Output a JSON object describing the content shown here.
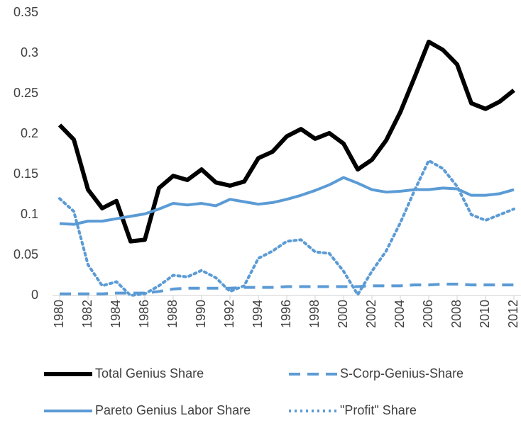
{
  "chart_data": {
    "type": "line",
    "x": [
      1980,
      1981,
      1982,
      1983,
      1984,
      1985,
      1986,
      1987,
      1988,
      1989,
      1990,
      1991,
      1992,
      1993,
      1994,
      1995,
      1996,
      1997,
      1998,
      1999,
      2000,
      2001,
      2002,
      2003,
      2004,
      2005,
      2006,
      2007,
      2008,
      2009,
      2010,
      2011,
      2012
    ],
    "xlim": [
      1980,
      2012
    ],
    "xticks": [
      1980,
      1982,
      1984,
      1986,
      1988,
      1990,
      1992,
      1994,
      1996,
      1998,
      2000,
      2002,
      2004,
      2006,
      2008,
      2010,
      2012
    ],
    "ylim": [
      0,
      0.35
    ],
    "yticks": [
      0,
      0.05,
      0.1,
      0.15,
      0.2,
      0.25,
      0.3,
      0.35
    ],
    "grid": false,
    "legend": "bottom",
    "series": [
      {
        "name": "Total Genius Share",
        "color": "#000000",
        "style": "solid",
        "width": 6,
        "values": [
          0.211,
          0.193,
          0.131,
          0.108,
          0.117,
          0.067,
          0.069,
          0.133,
          0.148,
          0.143,
          0.156,
          0.14,
          0.136,
          0.141,
          0.17,
          0.178,
          0.197,
          0.206,
          0.194,
          0.201,
          0.188,
          0.156,
          0.168,
          0.192,
          0.227,
          0.27,
          0.314,
          0.304,
          0.286,
          0.238,
          0.231,
          0.24,
          0.254
        ]
      },
      {
        "name": "S-Corp-Genius-Share",
        "color": "#5b9bd5",
        "style": "dash",
        "width": 4,
        "values": [
          0.002,
          0.002,
          0.002,
          0.002,
          0.003,
          0.003,
          0.003,
          0.005,
          0.008,
          0.009,
          0.009,
          0.009,
          0.009,
          0.01,
          0.01,
          0.01,
          0.011,
          0.011,
          0.011,
          0.011,
          0.011,
          0.011,
          0.012,
          0.012,
          0.012,
          0.013,
          0.013,
          0.014,
          0.014,
          0.013,
          0.013,
          0.013,
          0.013
        ]
      },
      {
        "name": "Pareto Genius Labor Share",
        "color": "#5b9bd5",
        "style": "solid",
        "width": 4,
        "values": [
          0.089,
          0.088,
          0.092,
          0.092,
          0.095,
          0.098,
          0.101,
          0.107,
          0.114,
          0.112,
          0.114,
          0.111,
          0.119,
          0.116,
          0.113,
          0.115,
          0.119,
          0.124,
          0.13,
          0.137,
          0.146,
          0.139,
          0.131,
          0.128,
          0.129,
          0.131,
          0.131,
          0.133,
          0.132,
          0.124,
          0.124,
          0.126,
          0.131
        ]
      },
      {
        "name": "\"Profit\" Share",
        "color": "#5b9bd5",
        "style": "dot",
        "width": 4,
        "values": [
          0.12,
          0.104,
          0.038,
          0.012,
          0.017,
          0.0,
          0.002,
          0.012,
          0.025,
          0.023,
          0.031,
          0.022,
          0.005,
          0.012,
          0.046,
          0.055,
          0.067,
          0.069,
          0.054,
          0.052,
          0.03,
          0.001,
          0.03,
          0.055,
          0.09,
          0.13,
          0.167,
          0.157,
          0.135,
          0.1,
          0.093,
          0.1,
          0.107
        ]
      }
    ]
  }
}
